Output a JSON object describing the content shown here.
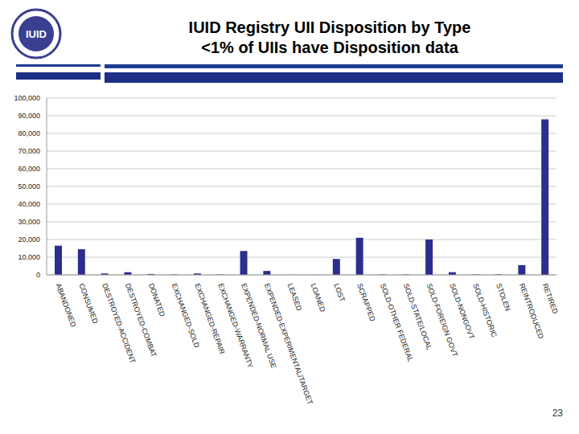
{
  "chart_data": {
    "type": "bar",
    "title": "IUID Registry UII Disposition by Type",
    "subtitle": "<1% of UIIs have Disposition data",
    "logo_text": "IUID",
    "page_number": "23",
    "categories": [
      "ABANDONED",
      "CONSUMED",
      "DESTROYED-ACCIDENT",
      "DESTROYED-COMBAT",
      "DONATED",
      "EXCHANGED-SOLD",
      "EXCHANGED-REPAIR",
      "EXCHANGED-WARRANTY",
      "EXPENDED-NORMAL USE",
      "EXPENDED-EXPERIMENTAL/TARGET",
      "LEASED",
      "LOANED",
      "LOST",
      "SCRAPPED",
      "SOLD-OTHER FEDERAL",
      "SOLD-STATE/LOCAL",
      "SOLD-FOREIGN GOVT",
      "SOLD-NONGOVT",
      "SOLD-HISTORIC",
      "STOLEN",
      "REINTRODUCED",
      "RETIRED"
    ],
    "values": [
      16500,
      14500,
      800,
      1500,
      500,
      200,
      800,
      200,
      13500,
      2200,
      100,
      100,
      9000,
      21000,
      200,
      200,
      20000,
      1500,
      200,
      300,
      5500,
      88000
    ],
    "color": "#2b2d8f",
    "ylim": [
      0,
      100000
    ],
    "yticks": [
      0,
      {
        "value": 10000,
        "label": "10,000"
      },
      {
        "value": 20000,
        "label": "20,000"
      },
      {
        "value": 30000,
        "label": "30,000"
      },
      {
        "value": 40000,
        "label": "40,000"
      },
      {
        "value": 50000,
        "label": "50,000"
      },
      {
        "value": 60000,
        "label": "60,000"
      },
      {
        "value": 70000,
        "label": "70,000"
      },
      {
        "value": 80000,
        "label": "80,000"
      },
      {
        "value": 90000,
        "label": "90,000"
      },
      {
        "value": 100000,
        "label": "100,000"
      }
    ],
    "grid": true
  }
}
